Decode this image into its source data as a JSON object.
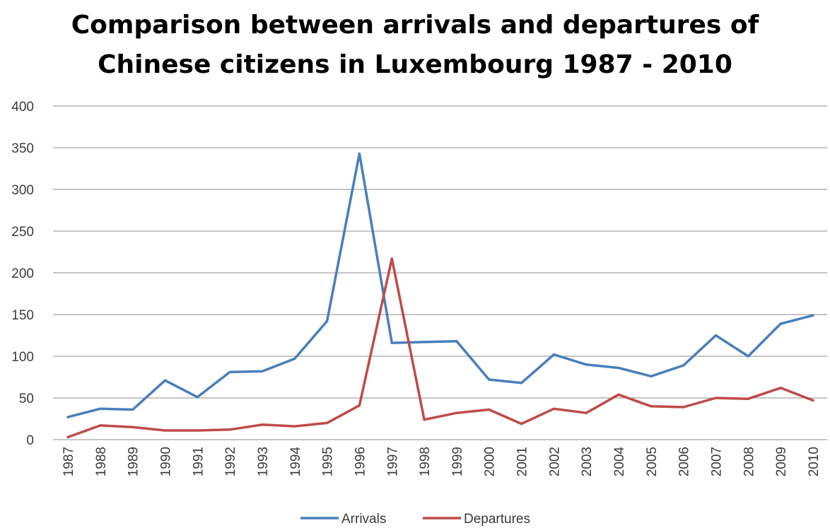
{
  "chart_data": {
    "type": "line",
    "title_line1": "Comparison between arrivals and departures of",
    "title_line2": "Chinese citizens in Luxembourg 1987 - 2010",
    "xlabel": "",
    "ylabel": "",
    "ylim": [
      0,
      400
    ],
    "yticks": [
      0,
      50,
      100,
      150,
      200,
      250,
      300,
      350,
      400
    ],
    "grid": true,
    "legend_position": "bottom",
    "categories": [
      "1987",
      "1988",
      "1989",
      "1990",
      "1991",
      "1992",
      "1993",
      "1994",
      "1995",
      "1996",
      "1997",
      "1998",
      "1999",
      "2000",
      "2001",
      "2002",
      "2003",
      "2004",
      "2005",
      "2006",
      "2007",
      "2008",
      "2009",
      "2010"
    ],
    "series": [
      {
        "name": "Arrivals",
        "color": "#4a7ebb",
        "values": [
          27,
          37,
          36,
          71,
          51,
          81,
          82,
          97,
          142,
          343,
          116,
          117,
          118,
          72,
          68,
          102,
          90,
          86,
          76,
          89,
          125,
          100,
          139,
          149
        ]
      },
      {
        "name": "Departures",
        "color": "#be4b48",
        "values": [
          3,
          17,
          15,
          11,
          11,
          12,
          18,
          16,
          20,
          41,
          217,
          24,
          32,
          36,
          19,
          37,
          32,
          54,
          40,
          39,
          50,
          49,
          62,
          47
        ]
      }
    ]
  }
}
